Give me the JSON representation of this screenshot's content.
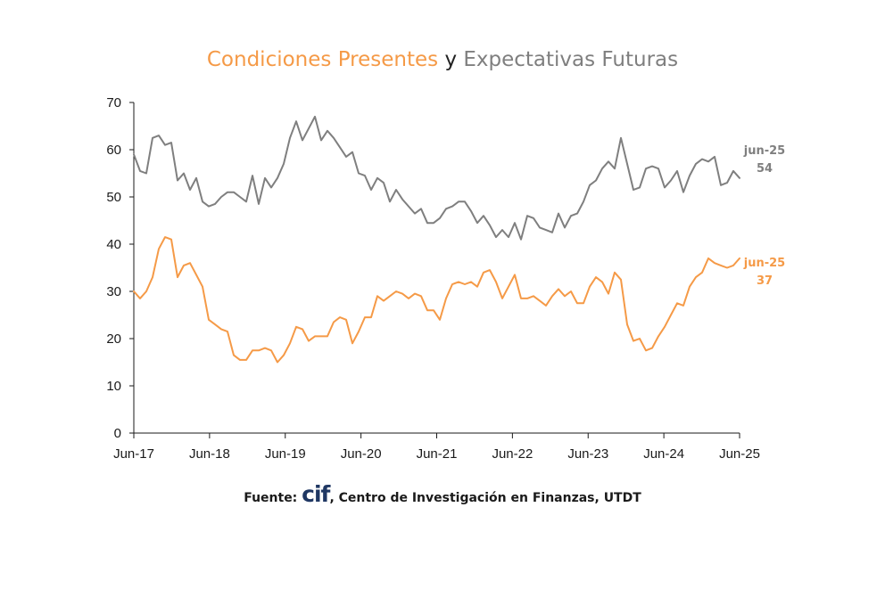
{
  "title": {
    "part1": "Condiciones Presentes",
    "connector": " y ",
    "part2": "Expectativas Futuras"
  },
  "source": {
    "prefix": "Fuente: ",
    "logo": "cif",
    "text": ", Centro de Investigación en Finanzas, UTDT"
  },
  "colors": {
    "presentes": "#F59A47",
    "futuras": "#7F7F7F",
    "axis": "#1a1a1a"
  },
  "chart_data": {
    "type": "line",
    "title": "Condiciones Presentes y Expectativas Futuras",
    "x_start": "Jun-17",
    "x_end": "Jun-25",
    "x_ticks": [
      "Jun-17",
      "Jun-18",
      "Jun-19",
      "Jun-20",
      "Jun-21",
      "Jun-22",
      "Jun-23",
      "Jun-24",
      "Jun-25"
    ],
    "ylim": [
      0,
      70
    ],
    "y_ticks": [
      0,
      10,
      20,
      30,
      40,
      50,
      60,
      70
    ],
    "grid": false,
    "legend": "none (series named in title)",
    "series": [
      {
        "name": "Expectativas Futuras",
        "color": "#7F7F7F",
        "end_label_date": "jun-25",
        "end_label_value": "54",
        "values": [
          59,
          55.5,
          55,
          62.5,
          63,
          61,
          61.5,
          53.5,
          55,
          51.5,
          54,
          49,
          48,
          48.5,
          50,
          51,
          51,
          50,
          49,
          54.5,
          48.5,
          54,
          52,
          54,
          57,
          62.5,
          66,
          62,
          64.5,
          67,
          62,
          64,
          62.5,
          60.5,
          58.5,
          59.5,
          55,
          54.5,
          51.5,
          54,
          53,
          49,
          51.5,
          49.5,
          48,
          46.5,
          47.5,
          44.5,
          44.5,
          45.5,
          47.5,
          48,
          49,
          49,
          47,
          44.5,
          46,
          44,
          41.5,
          43,
          41.5,
          44.5,
          41,
          46,
          45.5,
          43.5,
          43,
          42.5,
          46.5,
          43.5,
          46,
          46.5,
          49,
          52.5,
          53.5,
          56,
          57.5,
          56,
          62.5,
          57,
          51.5,
          52,
          56,
          56.5,
          56,
          52,
          53.5,
          55.5,
          51,
          54.5,
          57,
          58,
          57.5,
          58.5,
          52.5,
          53,
          55.5,
          54
        ]
      },
      {
        "name": "Condiciones Presentes",
        "color": "#F59A47",
        "end_label_date": "jun-25",
        "end_label_value": "37",
        "values": [
          30,
          28.5,
          30,
          33,
          39,
          41.5,
          41,
          33,
          35.5,
          36,
          33.5,
          31,
          24,
          23,
          22,
          21.5,
          16.5,
          15.5,
          15.5,
          17.5,
          17.5,
          18,
          17.5,
          15,
          16.5,
          19,
          22.5,
          22,
          19.5,
          20.5,
          20.5,
          20.5,
          23.5,
          24.5,
          24,
          19,
          21.5,
          24.5,
          24.5,
          29,
          28,
          29,
          30,
          29.5,
          28.5,
          29.5,
          29,
          26,
          26,
          24,
          28.5,
          31.5,
          32,
          31.5,
          32,
          31,
          34,
          34.5,
          32,
          28.5,
          31,
          33.5,
          28.5,
          28.5,
          29,
          28,
          27,
          29,
          30.5,
          29,
          30,
          27.5,
          27.5,
          31,
          33,
          32,
          29.5,
          34,
          32.5,
          23,
          19.5,
          20,
          17.5,
          18,
          20.5,
          22.5,
          25,
          27.5,
          27,
          31,
          33,
          34,
          37,
          36,
          35.5,
          35,
          35.5,
          37
        ]
      }
    ]
  }
}
